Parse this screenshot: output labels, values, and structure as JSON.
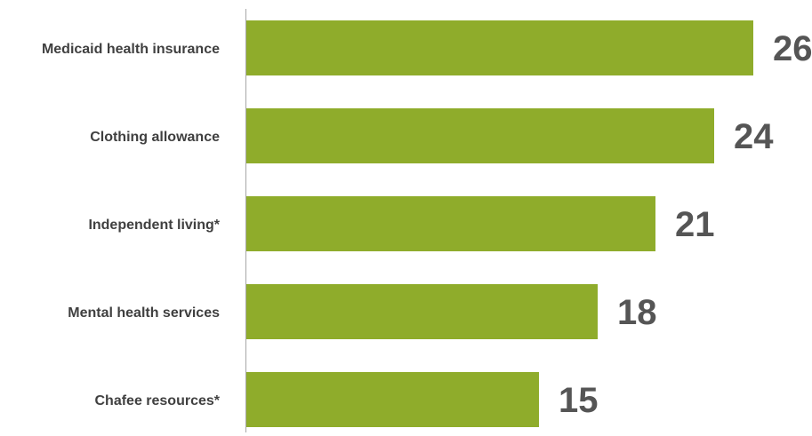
{
  "chart_data": {
    "type": "bar",
    "orientation": "horizontal",
    "categories": [
      "Medicaid health insurance",
      "Clothing allowance",
      "Independent living*",
      "Mental health services",
      "Chafee resources*"
    ],
    "values": [
      26,
      24,
      21,
      18,
      15
    ],
    "value_labels": [
      "26",
      "24",
      "21",
      "18",
      "15"
    ],
    "xlim": [
      0,
      26
    ],
    "grid": false,
    "legend": "none",
    "bar_color": "#8fac2b",
    "axis_color": "#a6a6a6",
    "label_color": "#404040",
    "value_label_color": "#555555"
  }
}
